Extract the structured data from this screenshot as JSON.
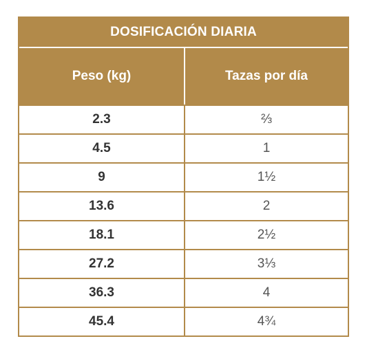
{
  "table": {
    "title": "DOSIFICACIÓN DIARIA",
    "headers": {
      "weight": "Peso (kg)",
      "cups": "Tazas por día"
    },
    "rows": [
      {
        "weight": "2.3",
        "cups": "⅔"
      },
      {
        "weight": "4.5",
        "cups": "1"
      },
      {
        "weight": "9",
        "cups": "1½"
      },
      {
        "weight": "13.6",
        "cups": "2"
      },
      {
        "weight": "18.1",
        "cups": "2½"
      },
      {
        "weight": "27.2",
        "cups": "3⅓"
      },
      {
        "weight": "36.3",
        "cups": "4"
      },
      {
        "weight": "45.4",
        "cups": "4¾"
      }
    ]
  },
  "colors": {
    "accent": "#b28a4a",
    "header_text": "#ffffff",
    "weight_text": "#333333",
    "cups_text": "#555555"
  }
}
